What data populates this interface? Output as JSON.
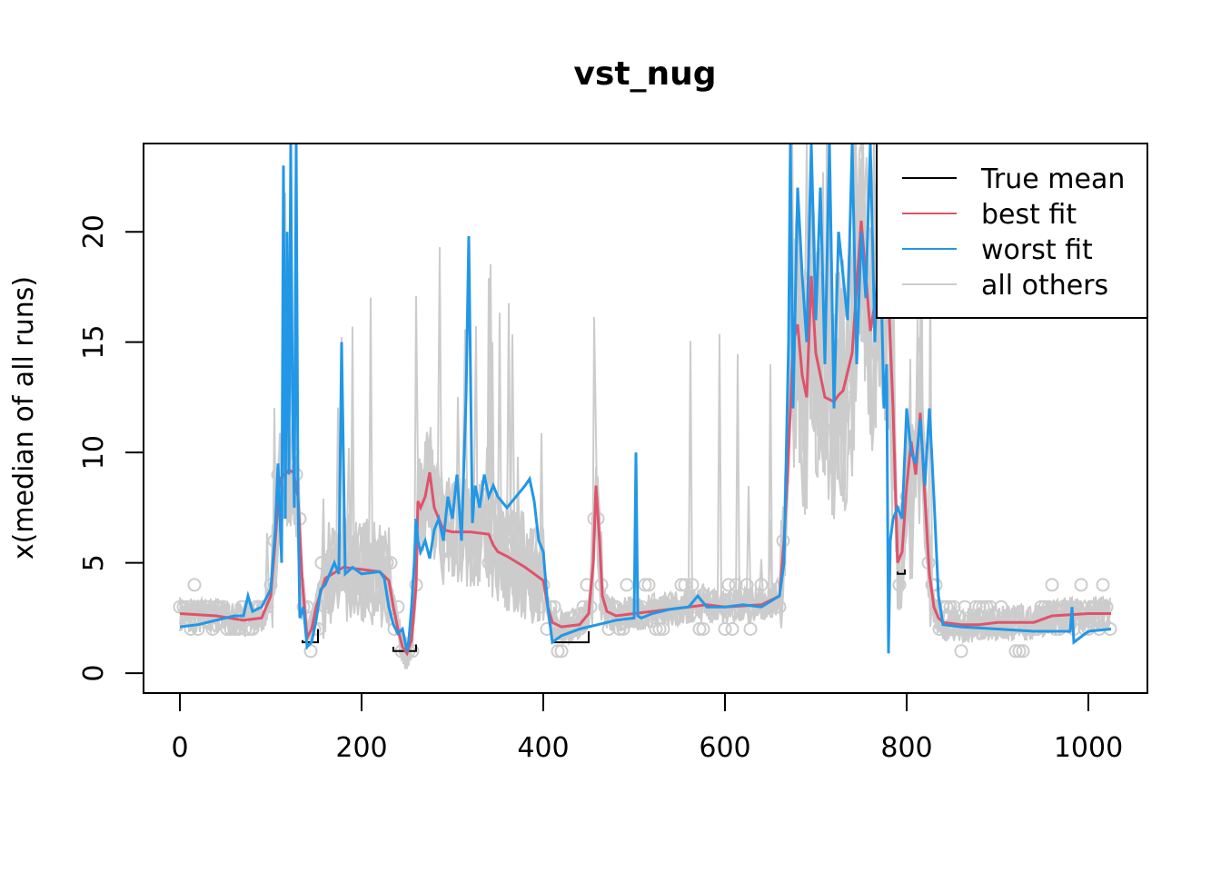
{
  "chart_data": {
    "type": "line",
    "title": "vst_nug",
    "xlabel": "",
    "ylabel": "x(median of all runs)",
    "xlim": [
      -40,
      1065
    ],
    "ylim": [
      -0.9,
      24
    ],
    "x_ticks": [
      0,
      200,
      400,
      600,
      800,
      1000
    ],
    "y_ticks": [
      0,
      5,
      10,
      15,
      20
    ],
    "legend": {
      "position": "top-right",
      "entries": [
        {
          "label": "True mean",
          "color": "#000000"
        },
        {
          "label": "best fit",
          "color": "#DF536B"
        },
        {
          "label": "worst fit",
          "color": "#2297E6"
        },
        {
          "label": "all others",
          "color": "#CCCCCC"
        }
      ]
    },
    "series": [
      {
        "name": "True mean",
        "color": "#000000",
        "x": [
          135,
          135,
          152,
          152,
          235,
          235,
          260,
          260,
          410,
          410,
          450,
          450,
          790,
          790,
          798,
          798
        ],
        "y": [
          1.5,
          1.4,
          1.4,
          2.0,
          1.2,
          1.0,
          1.0,
          1.3,
          1.5,
          1.4,
          1.4,
          1.9,
          4.6,
          4.5,
          4.5,
          4.7
        ]
      },
      {
        "name": "best fit",
        "color": "#DF536B",
        "x": [
          0,
          40,
          70,
          90,
          100,
          105,
          110,
          115,
          120,
          125,
          130,
          135,
          140,
          145,
          150,
          160,
          180,
          200,
          220,
          230,
          235,
          240,
          245,
          250,
          255,
          260,
          262,
          265,
          270,
          275,
          280,
          285,
          290,
          300,
          320,
          340,
          345,
          350,
          360,
          380,
          390,
          400,
          405,
          410,
          420,
          440,
          450,
          455,
          458,
          462,
          465,
          470,
          480,
          500,
          560,
          580,
          600,
          640,
          660,
          665,
          670,
          675,
          680,
          685,
          690,
          695,
          700,
          710,
          720,
          725,
          730,
          740,
          750,
          760,
          770,
          780,
          785,
          790,
          795,
          800,
          805,
          810,
          815,
          820,
          825,
          830,
          835,
          840,
          860,
          880,
          900,
          940,
          960,
          1000,
          1025
        ],
        "y": [
          2.7,
          2.6,
          2.4,
          2.5,
          3.5,
          6.0,
          8.8,
          9.0,
          9.2,
          9.1,
          8.0,
          4.0,
          1.6,
          2.0,
          3.0,
          4.3,
          4.8,
          4.7,
          4.6,
          4.2,
          3.0,
          2.0,
          1.2,
          0.9,
          1.5,
          4.0,
          7.8,
          7.5,
          8.0,
          9.1,
          7.5,
          7.0,
          6.5,
          6.4,
          6.4,
          6.3,
          5.8,
          5.5,
          5.3,
          4.8,
          4.5,
          4.2,
          3.0,
          2.3,
          2.1,
          2.2,
          2.7,
          5.0,
          8.5,
          6.0,
          3.5,
          2.8,
          2.6,
          2.7,
          3.0,
          3.1,
          3.0,
          3.1,
          3.5,
          6.0,
          10.0,
          15.0,
          15.8,
          13.5,
          12.5,
          18.0,
          14.5,
          12.5,
          12.3,
          12.6,
          12.8,
          14.5,
          20.5,
          15.5,
          18.0,
          17.0,
          12.0,
          5.0,
          5.5,
          8.5,
          10.5,
          9.0,
          11.8,
          8.0,
          4.5,
          3.0,
          2.5,
          2.3,
          2.2,
          2.2,
          2.3,
          2.3,
          2.6,
          2.7,
          2.7
        ]
      },
      {
        "name": "worst fit",
        "color": "#2297E6",
        "x": [
          0,
          20,
          40,
          60,
          70,
          75,
          80,
          90,
          100,
          105,
          108,
          112,
          114,
          116,
          118,
          120,
          122,
          124,
          126,
          128,
          130,
          132,
          136,
          140,
          145,
          150,
          155,
          160,
          170,
          175,
          178,
          182,
          190,
          200,
          220,
          225,
          230,
          235,
          240,
          245,
          250,
          252,
          255,
          258,
          260,
          262,
          265,
          270,
          275,
          280,
          285,
          290,
          295,
          300,
          305,
          310,
          315,
          318,
          322,
          325,
          330,
          335,
          340,
          345,
          350,
          360,
          370,
          380,
          385,
          390,
          395,
          400,
          405,
          410,
          420,
          440,
          460,
          480,
          500,
          502,
          504,
          508,
          520,
          540,
          560,
          570,
          580,
          600,
          620,
          640,
          660,
          665,
          670,
          672,
          675,
          680,
          685,
          690,
          695,
          700,
          705,
          710,
          715,
          720,
          725,
          730,
          735,
          740,
          745,
          750,
          755,
          760,
          765,
          770,
          775,
          778,
          780,
          782,
          785,
          790,
          795,
          800,
          805,
          810,
          815,
          820,
          825,
          830,
          835,
          840,
          860,
          900,
          940,
          980,
          982,
          984,
          1000,
          1025
        ],
        "y": [
          2.1,
          2.2,
          2.4,
          2.6,
          2.6,
          3.5,
          2.8,
          3.0,
          3.8,
          6.5,
          9.5,
          5.0,
          23.0,
          7.0,
          20.0,
          9.0,
          24.0,
          12.0,
          7.5,
          24.0,
          8.0,
          2.5,
          3.0,
          1.2,
          1.4,
          2.4,
          3.8,
          4.0,
          5.0,
          4.5,
          15.0,
          4.5,
          4.8,
          4.5,
          4.6,
          4.3,
          3.0,
          2.2,
          1.8,
          2.0,
          1.0,
          1.5,
          3.0,
          5.0,
          7.0,
          6.0,
          5.5,
          6.0,
          5.2,
          6.5,
          7.0,
          6.0,
          8.0,
          7.0,
          9.0,
          6.0,
          12.5,
          19.8,
          6.8,
          8.5,
          7.5,
          9.0,
          8.0,
          8.5,
          8.0,
          7.5,
          8.0,
          8.5,
          8.8,
          7.8,
          6.0,
          5.5,
          3.0,
          1.4,
          1.7,
          2.0,
          2.2,
          2.4,
          2.5,
          10.0,
          2.6,
          2.5,
          2.7,
          2.9,
          3.0,
          3.5,
          3.0,
          3.0,
          3.1,
          3.0,
          3.5,
          5.0,
          15.0,
          24.0,
          12.0,
          22.0,
          18.0,
          15.0,
          24.0,
          16.0,
          22.0,
          14.0,
          24.0,
          12.0,
          20.0,
          18.0,
          16.0,
          24.0,
          14.0,
          20.0,
          17.0,
          24.0,
          15.0,
          21.0,
          12.0,
          14.0,
          0.9,
          6.0,
          7.0,
          7.5,
          7.0,
          12.0,
          10.0,
          9.5,
          11.5,
          8.5,
          12.0,
          8.0,
          3.5,
          2.2,
          2.1,
          2.0,
          1.9,
          1.9,
          3.0,
          1.4,
          1.9,
          2.0
        ]
      }
    ],
    "others_note": "all others: many gray noisy runs with open circle markers"
  }
}
